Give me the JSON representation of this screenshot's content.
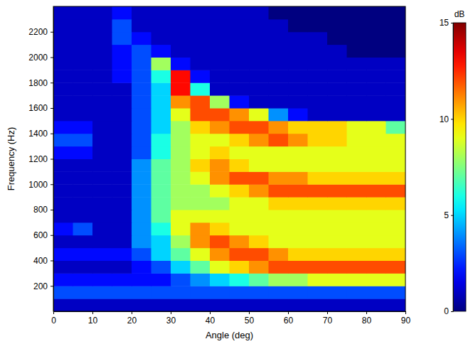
{
  "chart_data": {
    "type": "heatmap",
    "x_label": "Angle (deg)",
    "y_label": "Frequency (Hz)",
    "x": [
      2.5,
      7.5,
      12.5,
      17.5,
      22.5,
      27.5,
      32.5,
      37.5,
      42.5,
      47.5,
      52.5,
      57.5,
      62.5,
      67.5,
      72.5,
      77.5,
      82.5,
      87.5
    ],
    "y": [
      50,
      150,
      250,
      350,
      450,
      550,
      650,
      750,
      850,
      950,
      1050,
      1150,
      1250,
      1350,
      1450,
      1550,
      1650,
      1750,
      1850,
      1950,
      2050,
      2150,
      2250,
      2350
    ],
    "z": [
      [
        1,
        1,
        1,
        1,
        1,
        1,
        1,
        1,
        1,
        1,
        1,
        1,
        1,
        1,
        1,
        1,
        1,
        1
      ],
      [
        3,
        3,
        3,
        3,
        3,
        3,
        3,
        3,
        3,
        3,
        3,
        3,
        3,
        3,
        3,
        3,
        3,
        3
      ],
      [
        2,
        2,
        2,
        2,
        2,
        2,
        3,
        4,
        5,
        6,
        7,
        8,
        8,
        9,
        9,
        9,
        9,
        9
      ],
      [
        1,
        1,
        1,
        1,
        2,
        3,
        5,
        7,
        9,
        10,
        11,
        12,
        12,
        12,
        12,
        12,
        12,
        12
      ],
      [
        2,
        2,
        2,
        2,
        3,
        5,
        7,
        9,
        11,
        12,
        12,
        11,
        10,
        10,
        10,
        10,
        10,
        10
      ],
      [
        1,
        1,
        1,
        1,
        4,
        5,
        8,
        11,
        12,
        11,
        10,
        9,
        9,
        9,
        9,
        9,
        9,
        9
      ],
      [
        2,
        3,
        1,
        1,
        4,
        6,
        9,
        11,
        10,
        9,
        9,
        9,
        9,
        9,
        9,
        9,
        9,
        9
      ],
      [
        1,
        1,
        1,
        1,
        4,
        7,
        9,
        9,
        9,
        9,
        9,
        9,
        9,
        9,
        9,
        9,
        9,
        9
      ],
      [
        1,
        1,
        1,
        1,
        4,
        7,
        8,
        8,
        8,
        9,
        9,
        10,
        10,
        10,
        10,
        10,
        10,
        10
      ],
      [
        1,
        1,
        1,
        1,
        4,
        7,
        8,
        8,
        9,
        10,
        11,
        12,
        12,
        12,
        12,
        12,
        12,
        12
      ],
      [
        1,
        1,
        1,
        1,
        4,
        7,
        8,
        9,
        11,
        12,
        12,
        11,
        11,
        10,
        10,
        10,
        10,
        10
      ],
      [
        1,
        1,
        1,
        1,
        4,
        7,
        8,
        10,
        11,
        10,
        9,
        9,
        9,
        9,
        9,
        9,
        9,
        9
      ],
      [
        2,
        2,
        1,
        1,
        3,
        6,
        8,
        9,
        10,
        9,
        9,
        9,
        9,
        9,
        9,
        9,
        9,
        9
      ],
      [
        3,
        3,
        1,
        1,
        3,
        6,
        8,
        9,
        9,
        10,
        11,
        12,
        11,
        10,
        10,
        9,
        9,
        9
      ],
      [
        2,
        2,
        1,
        1,
        3,
        5,
        8,
        10,
        11,
        12,
        12,
        11,
        10,
        10,
        10,
        9,
        9,
        7
      ],
      [
        1,
        1,
        1,
        1,
        3,
        5,
        9,
        12,
        12,
        11,
        9,
        4,
        2,
        1,
        1,
        1,
        1,
        1
      ],
      [
        1,
        1,
        1,
        1,
        3,
        5,
        11,
        12,
        8,
        2,
        1,
        1,
        1,
        1,
        1,
        1,
        1,
        1
      ],
      [
        1,
        1,
        1,
        1,
        3,
        5,
        13,
        6,
        1,
        1,
        1,
        1,
        1,
        1,
        1,
        1,
        1,
        1
      ],
      [
        1,
        1,
        1,
        2,
        3,
        6,
        13,
        2,
        1,
        1,
        1,
        1,
        1,
        1,
        1,
        1,
        1,
        1
      ],
      [
        1,
        1,
        1,
        2,
        3,
        8,
        2,
        1,
        1,
        1,
        1,
        1,
        1,
        1,
        1,
        1,
        1,
        1
      ],
      [
        1,
        1,
        1,
        2,
        3,
        2,
        1,
        1,
        1,
        1,
        1,
        1,
        1,
        1,
        1,
        0,
        0,
        0
      ],
      [
        1,
        1,
        1,
        3,
        2,
        1,
        1,
        1,
        1,
        1,
        1,
        1,
        1,
        1,
        0,
        0,
        0,
        0
      ],
      [
        1,
        1,
        1,
        3,
        1,
        1,
        1,
        1,
        1,
        1,
        1,
        1,
        0,
        0,
        0,
        0,
        0,
        0
      ],
      [
        1,
        1,
        1,
        2,
        1,
        1,
        1,
        1,
        1,
        1,
        1,
        0,
        0,
        0,
        0,
        0,
        0,
        0
      ]
    ],
    "xlim": [
      0,
      90
    ],
    "xticks": [
      0,
      10,
      20,
      30,
      40,
      50,
      60,
      70,
      80,
      90
    ],
    "ylim": [
      0,
      2400
    ],
    "yticks": [
      200,
      400,
      600,
      800,
      1000,
      1200,
      1400,
      1600,
      1800,
      2000,
      2200
    ],
    "zlim": [
      0,
      15
    ],
    "zticks": [
      0,
      5,
      10,
      15
    ],
    "colorbar_label": "dB"
  }
}
